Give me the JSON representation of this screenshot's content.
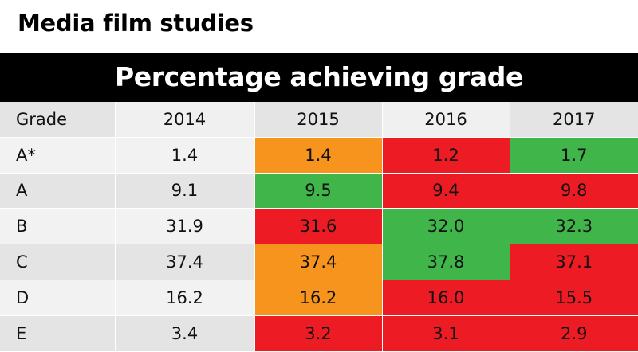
{
  "title": "Media film studies",
  "banner": "Percentage achieving grade",
  "colors": {
    "orange": "#f7941d",
    "red": "#ed1c24",
    "green": "#3fb54a",
    "banner_bg": "#000000"
  },
  "chart_data": {
    "type": "table",
    "title": "Media film studies",
    "subtitle": "Percentage achieving grade",
    "columns": [
      "Grade",
      "2014",
      "2015",
      "2016",
      "2017"
    ],
    "rows": [
      {
        "grade": "A*",
        "values": [
          "1.4",
          "1.4",
          "1.2",
          "1.7"
        ],
        "colors": [
          "none",
          "orange",
          "red",
          "green"
        ]
      },
      {
        "grade": "A",
        "values": [
          "9.1",
          "9.5",
          "9.4",
          "9.8"
        ],
        "colors": [
          "none",
          "green",
          "red",
          "red"
        ]
      },
      {
        "grade": "B",
        "values": [
          "31.9",
          "31.6",
          "32.0",
          "32.3"
        ],
        "colors": [
          "none",
          "red",
          "green",
          "green"
        ]
      },
      {
        "grade": "C",
        "values": [
          "37.4",
          "37.4",
          "37.8",
          "37.1"
        ],
        "colors": [
          "none",
          "orange",
          "green",
          "red"
        ]
      },
      {
        "grade": "D",
        "values": [
          "16.2",
          "16.2",
          "16.0",
          "15.5"
        ],
        "colors": [
          "none",
          "orange",
          "red",
          "red"
        ]
      },
      {
        "grade": "E",
        "values": [
          "3.4",
          "3.2",
          "3.1",
          "2.9"
        ],
        "colors": [
          "none",
          "red",
          "red",
          "red"
        ]
      }
    ]
  }
}
